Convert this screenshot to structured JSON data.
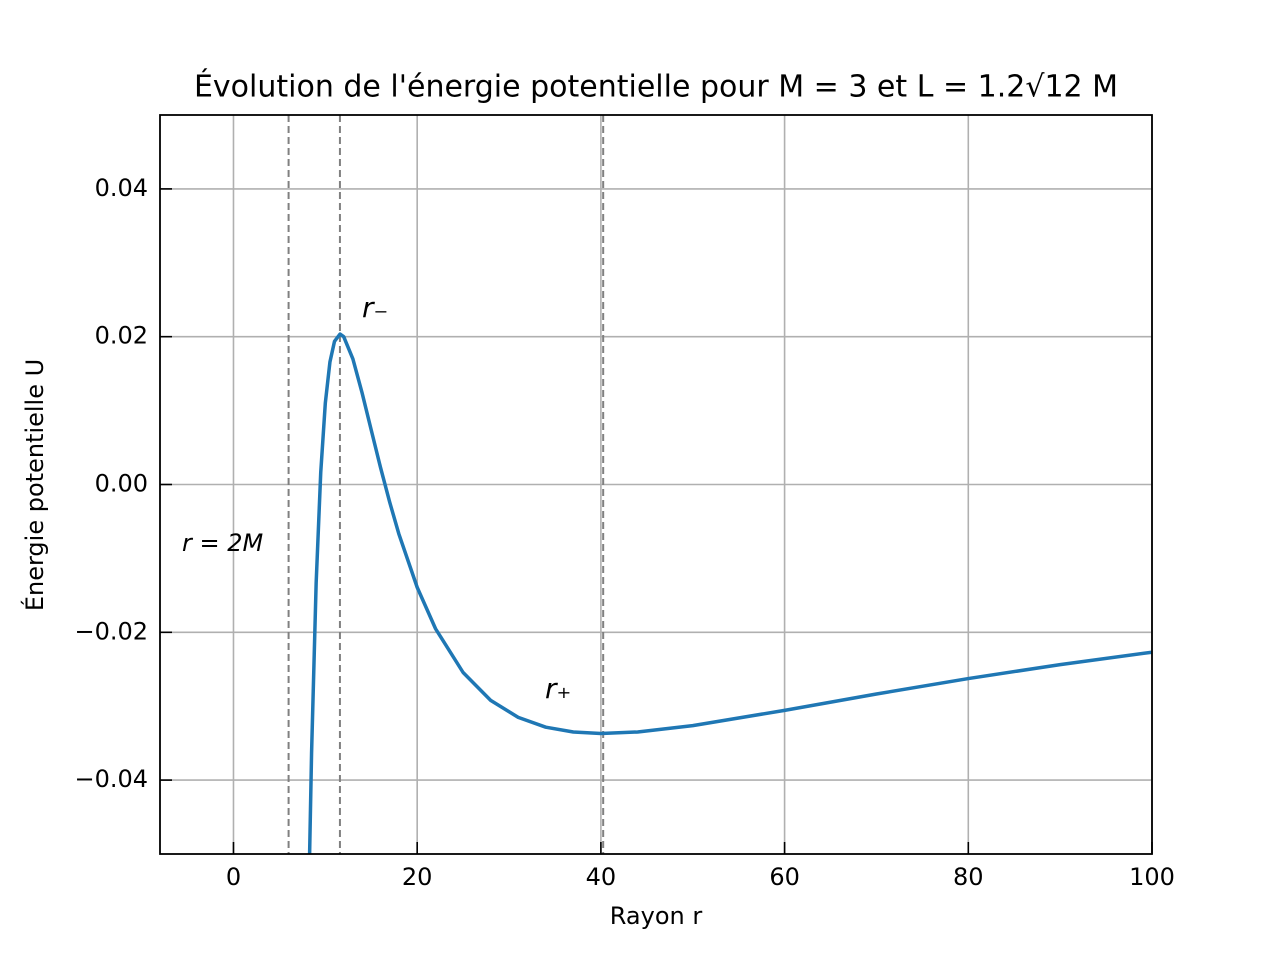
{
  "chart_data": {
    "type": "line",
    "title": "Évolution de l'énergie potentielle pour M = 3 et L = 1.2√12 M",
    "x_label": "Rayon r",
    "y_label": "Énergie potentielle U",
    "annotations": [
      "r₋",
      "r₊",
      "r = 2M"
    ],
    "x": [
      8.2,
      8.5,
      9,
      9.5,
      10,
      10.5,
      11,
      11.6,
      12,
      13,
      14,
      15,
      16,
      17,
      18,
      20,
      22,
      25,
      28,
      31,
      34,
      37,
      40,
      44,
      50,
      60,
      70,
      80,
      90,
      100
    ],
    "series": [
      {
        "color": "#1f77b4",
        "values": [
          -0.0556,
          -0.03639,
          -0.01333,
          0.00164,
          0.01104,
          0.01657,
          0.01938,
          0.02036,
          0.02,
          0.01699,
          0.01241,
          0.00736,
          0.00234,
          -0.00236,
          -0.00667,
          -0.01392,
          -0.01952,
          -0.02544,
          -0.02921,
          -0.03151,
          -0.03284,
          -0.03349,
          -0.03369,
          -0.03349,
          -0.03263,
          -0.03056,
          -0.02835,
          -0.02626,
          -0.02437,
          -0.02269
        ]
      }
    ],
    "vlines": {
      "values": [
        6,
        11.59,
        40.25
      ],
      "color": "#808080"
    },
    "xlim": [
      -8,
      100
    ],
    "ylim": [
      -0.05,
      0.05
    ],
    "xticks": [
      0,
      20,
      40,
      60,
      80,
      100
    ],
    "yticks": [
      {
        "value": -0.04,
        "label": "−0.04"
      },
      {
        "value": -0.02,
        "label": "−0.02"
      },
      {
        "value": 0,
        "label": "0.00"
      },
      0.02,
      0.04
    ],
    "grid": true
  }
}
